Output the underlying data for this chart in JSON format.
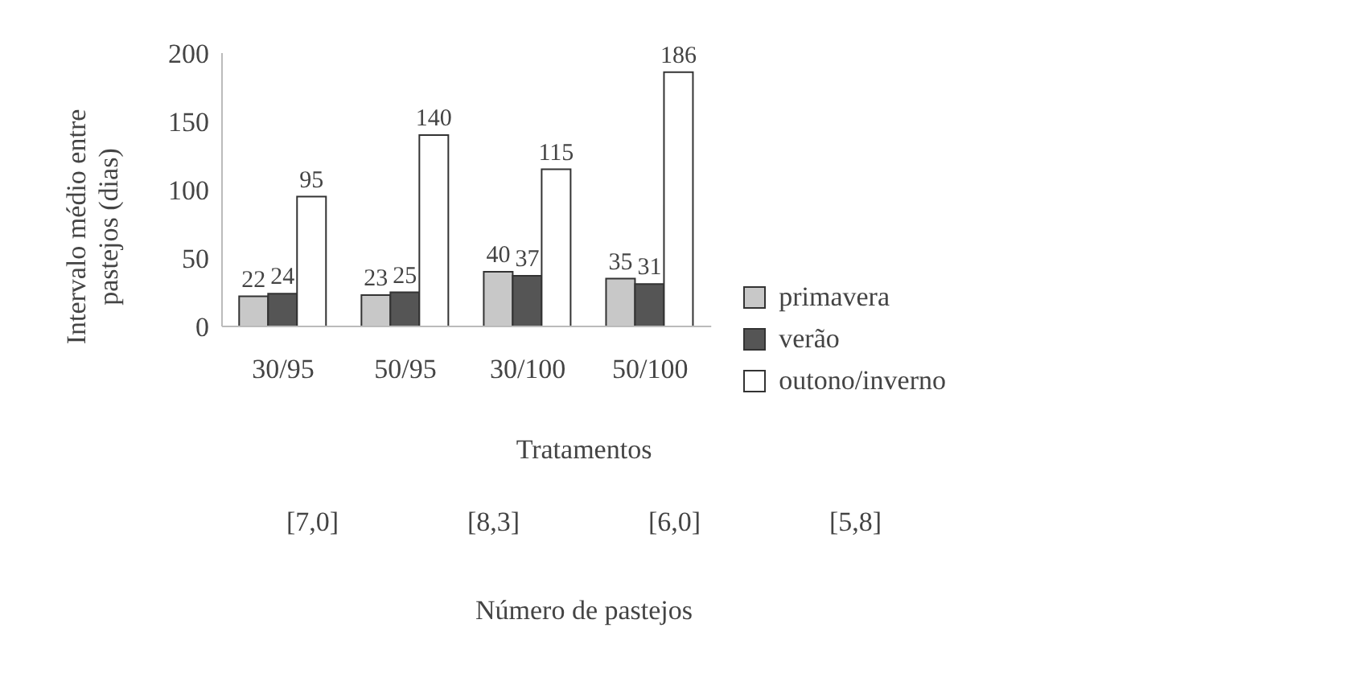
{
  "chart_data": {
    "type": "bar",
    "ylabel": "Intervalo médio entre pastejos (dias)",
    "xlabel": "Tratamentos",
    "categories": [
      "30/95",
      "50/95",
      "30/100",
      "50/100"
    ],
    "series": [
      {
        "name": "primavera",
        "color": "#c8c8c8",
        "values": [
          22,
          23,
          40,
          35
        ]
      },
      {
        "name": "verão",
        "color": "#555555",
        "values": [
          24,
          25,
          37,
          31
        ]
      },
      {
        "name": "outono/inverno",
        "color": "#ffffff",
        "values": [
          95,
          140,
          115,
          186
        ]
      }
    ],
    "ylim": [
      0,
      200
    ],
    "yticks": [
      0,
      50,
      100,
      150,
      200
    ],
    "data_labels": true,
    "legend": "right",
    "annotations": [
      "[7,0]",
      "[8,3]",
      "[6,0]",
      "[5,8]",
      "Número de pastejos"
    ]
  }
}
